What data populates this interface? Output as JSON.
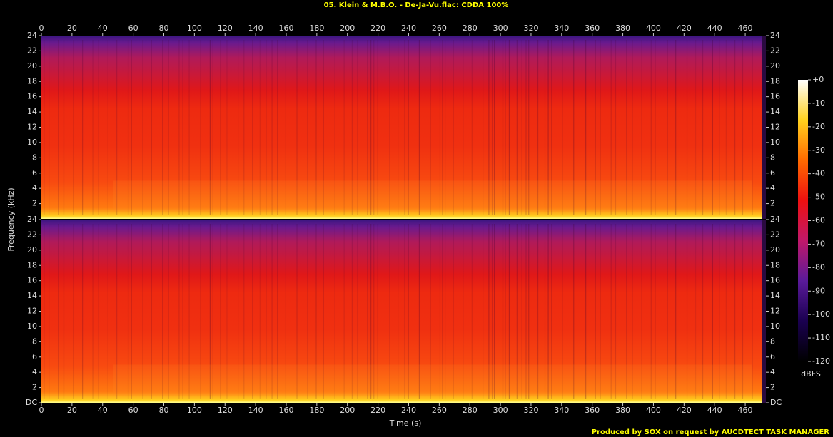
{
  "chart_data": {
    "type": "spectrogram",
    "title": "05. Klein & M.B.O. - De-Ja-Vu.flac: CDDA 100%",
    "xlabel": "Time (s)",
    "ylabel": "Frequency (kHz)",
    "xlim": [
      0,
      473.5
    ],
    "xticks": [
      0,
      20,
      40,
      60,
      80,
      100,
      120,
      140,
      160,
      180,
      200,
      220,
      240,
      260,
      280,
      300,
      320,
      340,
      360,
      380,
      400,
      420,
      440,
      460
    ],
    "ylim": [
      0,
      24
    ],
    "yticks": [
      {
        "value": 0,
        "label": "DC"
      },
      2,
      4,
      6,
      8,
      10,
      12,
      14,
      16,
      18,
      20,
      22,
      24
    ],
    "channels": 2,
    "colorbar": {
      "label": "dBFS",
      "lim": [
        -120,
        0
      ],
      "ticks": [
        {
          "value": 0,
          "label": "+0"
        },
        -10,
        -20,
        -30,
        -40,
        -50,
        -60,
        -70,
        -80,
        -90,
        -100,
        -110,
        -120
      ],
      "colors": [
        "#000000",
        "#1a0050",
        "#5a1a9a",
        "#c0186a",
        "#ee1010",
        "#ff6a00",
        "#ffd21e",
        "#ffffff"
      ]
    }
  },
  "footer": "Produced by SOX on request by AUCDTECT TASK MANAGER"
}
